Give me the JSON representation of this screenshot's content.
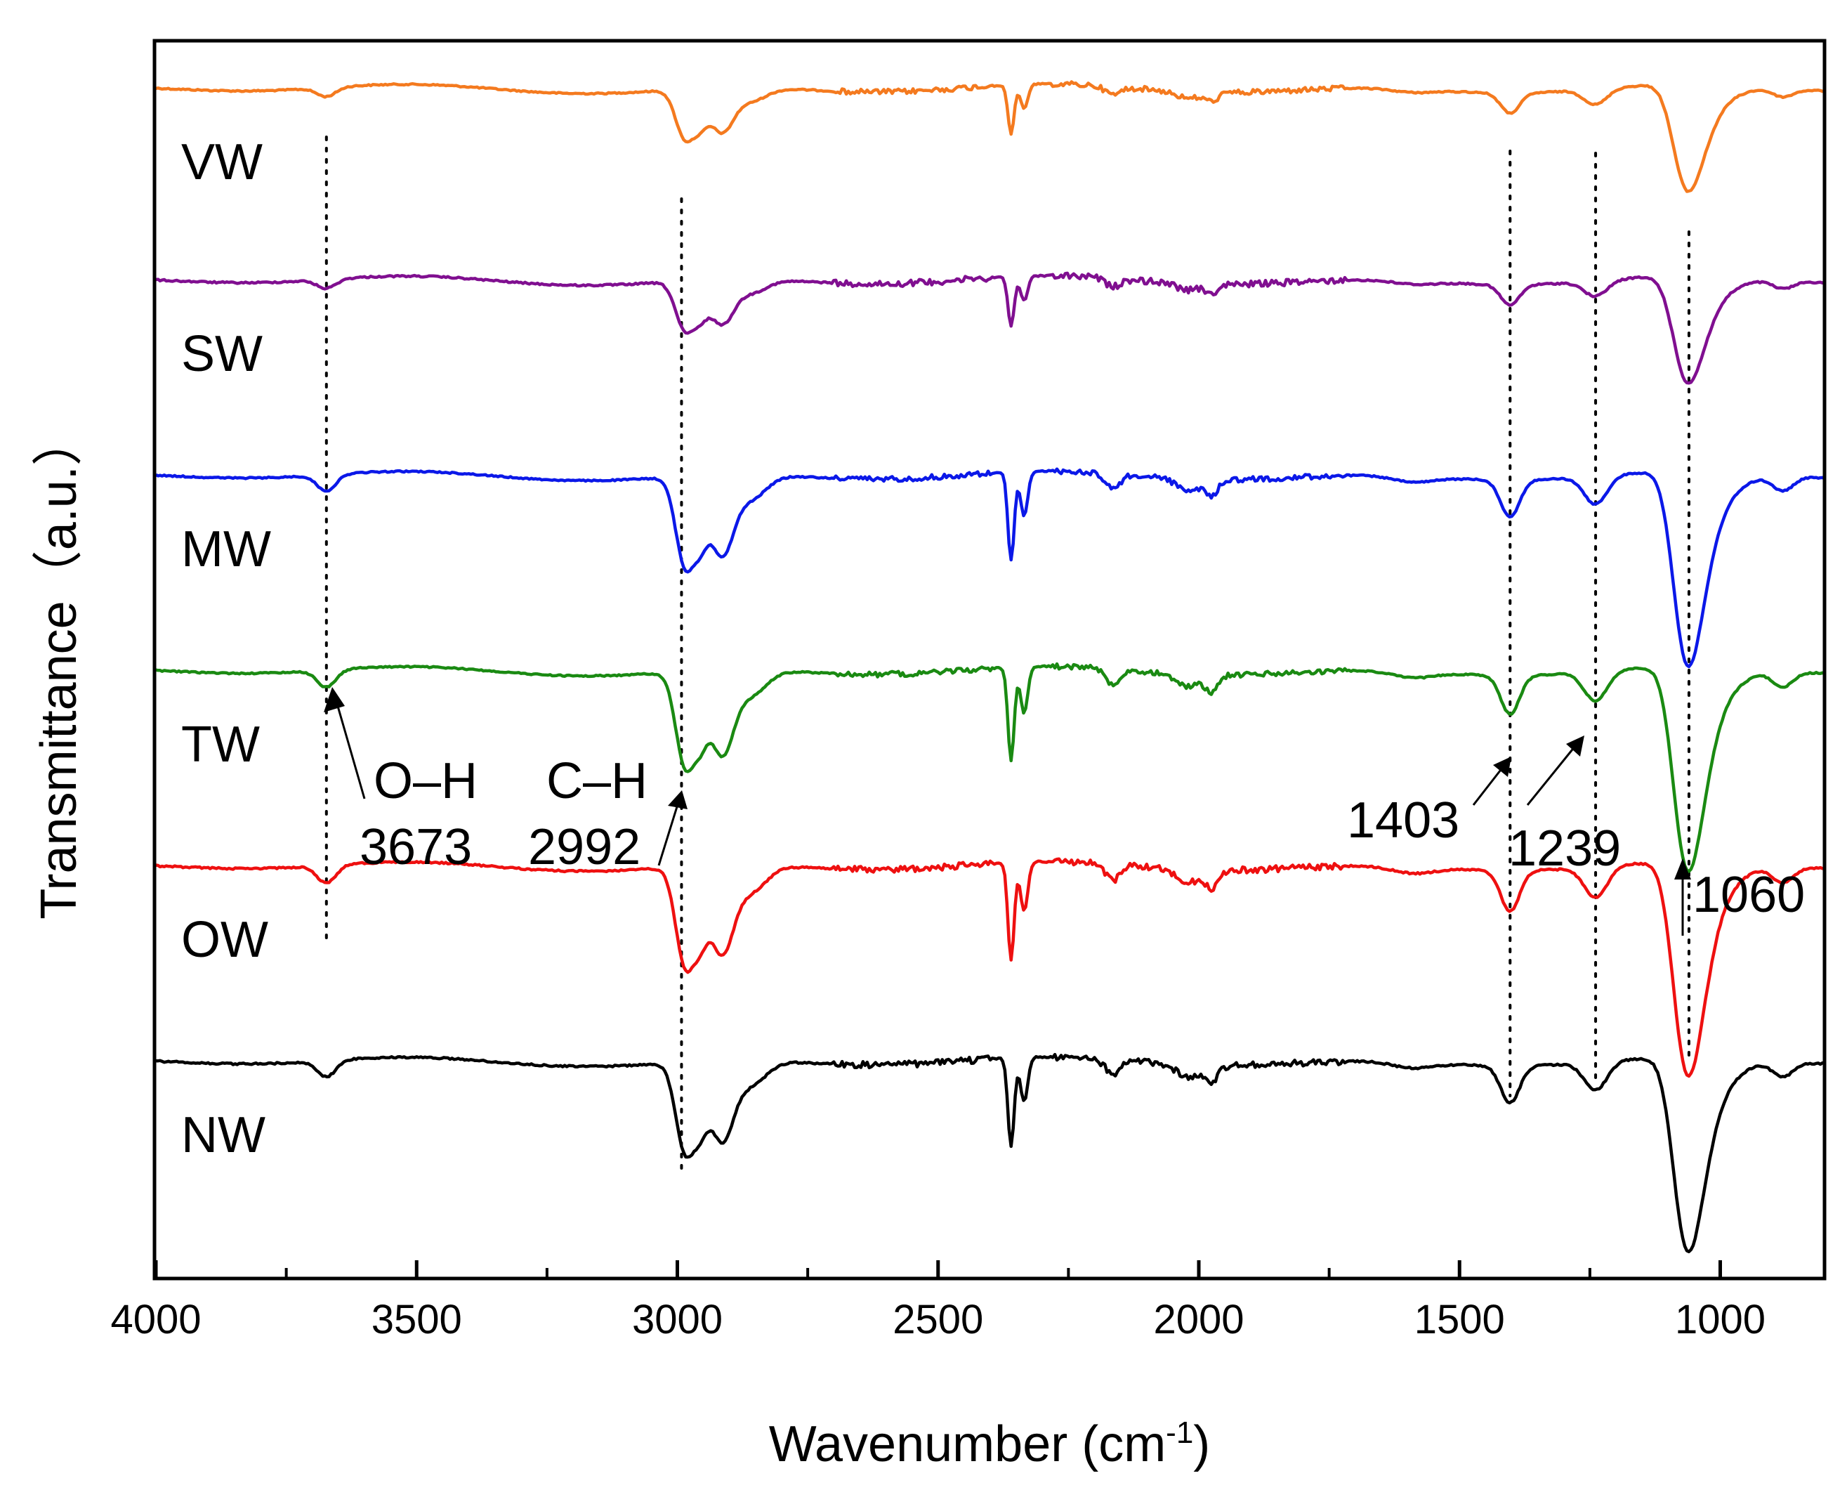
{
  "chart_data": {
    "type": "line",
    "title": "",
    "xlabel": "Wavenumber (cm",
    "xlabel_sup": "-1",
    "xlabel_close": ")",
    "ylabel": "Transmittance（a.u.）",
    "xlim": [
      4000,
      800
    ],
    "x_ticks": [
      {
        "value": 4000,
        "label": "4000"
      },
      {
        "value": 3500,
        "label": "3500"
      },
      {
        "value": 3000,
        "label": "3000"
      },
      {
        "value": 2500,
        "label": "2500"
      },
      {
        "value": 2000,
        "label": "2000"
      },
      {
        "value": 1500,
        "label": "1500"
      },
      {
        "value": 1000,
        "label": "1000"
      }
    ],
    "minor_ticks": [
      3750,
      3250,
      2750,
      2250,
      1750,
      1250
    ],
    "grid": false,
    "y_tick_labels": false,
    "series": [
      {
        "name": "VW",
        "color": "#f47a1f",
        "offset": 5,
        "amp": 0.55,
        "noise": 0.05
      },
      {
        "name": "SW",
        "color": "#800f90",
        "offset": 4,
        "amp": 0.55,
        "noise": 0.06
      },
      {
        "name": "MW",
        "color": "#0b18e8",
        "offset": 3,
        "amp": 1.0,
        "noise": 0.05
      },
      {
        "name": "TW",
        "color": "#1a8a12",
        "offset": 2,
        "amp": 1.05,
        "noise": 0.05
      },
      {
        "name": "OW",
        "color": "#ee1010",
        "offset": 1,
        "amp": 1.1,
        "noise": 0.06
      },
      {
        "name": "NW",
        "color": "#000000",
        "offset": 0,
        "amp": 1.0,
        "noise": 0.06
      }
    ],
    "peaks": [
      {
        "x": 3673,
        "bond": "O–H",
        "label": "3673"
      },
      {
        "x": 2992,
        "bond": "C–H",
        "label": "2992"
      },
      {
        "x": 1403,
        "bond": "",
        "label": "1403"
      },
      {
        "x": 1239,
        "bond": "",
        "label": "1239"
      },
      {
        "x": 1060,
        "bond": "",
        "label": "1060"
      }
    ]
  }
}
